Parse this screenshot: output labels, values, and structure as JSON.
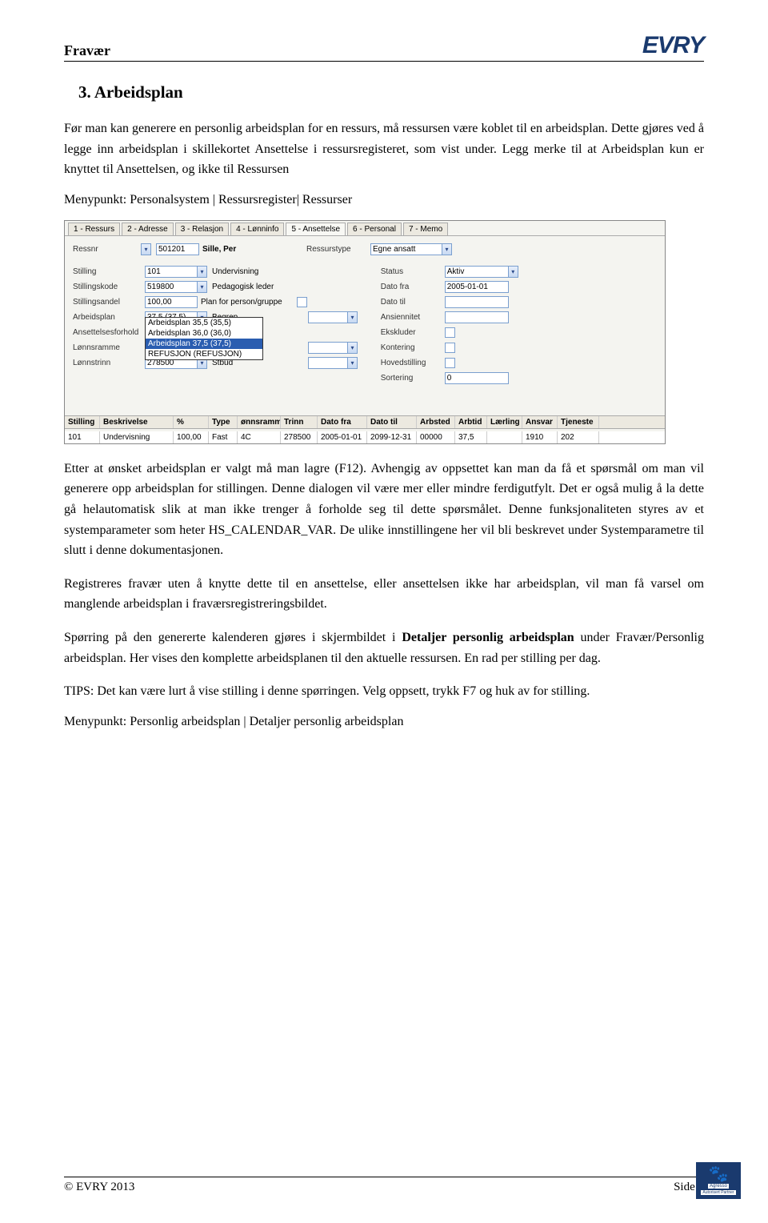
{
  "header": {
    "title": "Fravær",
    "logo": "EVRY"
  },
  "section": {
    "heading": "3. Arbeidsplan"
  },
  "paragraphs": {
    "p1": "Før man kan generere en personlig arbeidsplan for en ressurs, må ressursen være koblet til en arbeidsplan. Dette gjøres ved å legge inn arbeidsplan i skillekortet Ansettelse i ressursregisteret, som vist under. Legg merke til at Arbeidsplan kun er knyttet til Ansettelsen, og ikke til Ressursen",
    "menu1": "Menypunkt: Personalsystem | Ressursregister| Ressurser",
    "p2a": "Etter at ønsket arbeidsplan er valgt må man lagre (F12). Avhengig av oppsettet kan man da få et spørsmål om man vil generere opp arbeidsplan for stillingen. Denne dialogen vil være mer eller mindre ferdigutfylt. Det er også mulig å la dette gå helautomatisk slik at man ikke trenger å forholde seg til dette spørsmålet. Denne funksjonaliteten styres av et systemparameter som heter HS_CALENDAR_VAR. De ulike innstillingene her vil bli beskrevet under Systemparametre til slutt i denne dokumentasjonen.",
    "p3": "Registreres fravær uten å knytte dette til en ansettelse, eller ansettelsen ikke har arbeidsplan, vil man få varsel om manglende arbeidsplan i fraværsregistreringsbildet.",
    "p4a": "Spørring på den genererte kalenderen gjøres i skjermbildet i ",
    "p4b": "Detaljer personlig arbeidsplan",
    "p4c": " under Fravær/Personlig arbeidsplan. Her vises den komplette arbeidsplanen til den aktuelle ressursen. En rad per stilling per dag.",
    "p5": "TIPS: Det kan være lurt å vise stilling i denne spørringen. Velg oppsett, trykk F7 og huk av for stilling.",
    "menu2": "Menypunkt: Personlig arbeidsplan | Detaljer personlig arbeidsplan"
  },
  "screenshot": {
    "tabs": [
      "1 - Ressurs",
      "2 - Adresse",
      "3 - Relasjon",
      "4 - Lønninfo",
      "5 - Ansettelse",
      "6 - Personal",
      "7 - Memo"
    ],
    "active_tab_index": 4,
    "top_row": {
      "ressnr_label": "Ressnr",
      "ressnr_value": "501201",
      "name": "Sille, Per",
      "ressurstype_label": "Ressurstype",
      "ressurstype_value": "Egne ansatt"
    },
    "left_fields": [
      {
        "label": "Stilling",
        "value": "101",
        "text": "Undervisning",
        "dd": true
      },
      {
        "label": "Stillingskode",
        "value": "519800",
        "text": "Pedagogisk leder",
        "dd": true
      },
      {
        "label": "Stillingsandel",
        "value": "100,00",
        "text": "Plan for person/gruppe",
        "check": true
      },
      {
        "label": "Arbeidsplan",
        "value": "37,5  (37,5)",
        "text": "Begrep",
        "dd": true,
        "dd2": true
      },
      {
        "label": "Ansettelsesforhold",
        "value": "",
        "text": "",
        "dropdown_open": true
      },
      {
        "label": "Lønnsramme",
        "value": "",
        "text": "1",
        "dd": true,
        "dd2": true
      },
      {
        "label": "Lønnstrinn",
        "value": "278500",
        "text": "Stbud",
        "dd": true,
        "dd2": true
      }
    ],
    "right_fields": [
      {
        "label": "Status",
        "value": "Aktiv",
        "dd": true
      },
      {
        "label": "Dato fra",
        "value": "2005-01-01"
      },
      {
        "label": "Dato til",
        "value": ""
      },
      {
        "label": "Ansiennitet",
        "value": ""
      },
      {
        "label": "Ekskluder",
        "check": true
      },
      {
        "label": "Kontering",
        "check": true
      },
      {
        "label": "Hovedstilling",
        "check": true
      },
      {
        "label": "Sortering",
        "value": "0"
      }
    ],
    "dropdown_options": [
      {
        "text": "Arbeidsplan 35,5   (35,5)"
      },
      {
        "text": "Arbeidsplan 36,0   (36,0)"
      },
      {
        "text": "Arbeidsplan 37,5   (37,5)",
        "selected": true
      },
      {
        "text": "REFUSJON   (REFUSJON)"
      }
    ],
    "grid": {
      "headers": [
        "Stilling",
        "Beskrivelse",
        "%",
        "Type",
        "ønnsramm",
        "Trinn",
        "Dato fra",
        "Dato til",
        "Arbsted",
        "Arbtid",
        "Lærling",
        "Ansvar",
        "Tjeneste"
      ],
      "widths": [
        44,
        92,
        44,
        36,
        54,
        46,
        62,
        62,
        48,
        40,
        44,
        44,
        52
      ],
      "row": [
        "101",
        "Undervisning",
        "100,00",
        "Fast",
        "4C",
        "278500",
        "2005-01-01",
        "2099-12-31",
        "00000",
        "37,5",
        "",
        "1910",
        "202"
      ]
    }
  },
  "footer": {
    "left": "© EVRY 2013",
    "right": "Side 6",
    "logo_brand": "Agresso",
    "logo_sub": "Autorisert Partner"
  }
}
